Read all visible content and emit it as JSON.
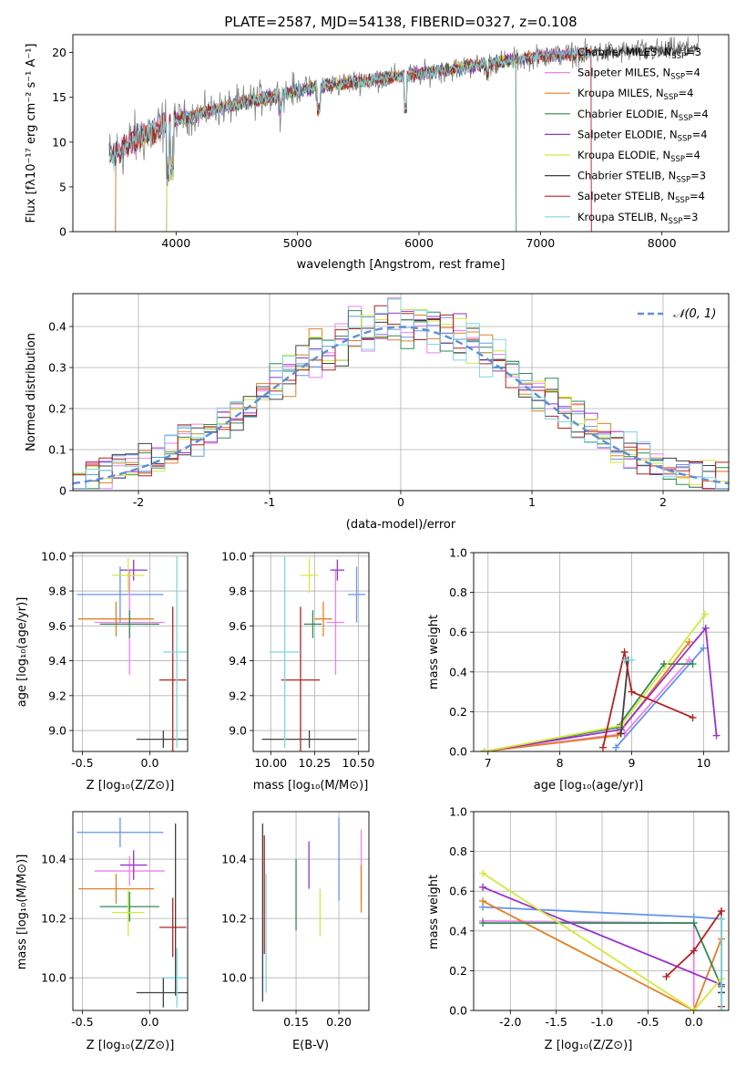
{
  "chart_data": [
    {
      "id": "spectrum",
      "type": "line",
      "title": "PLATE=2587, MJD=54138, FIBERID=0327, z=0.108",
      "xlabel": "wavelength [Angstrom, rest frame]",
      "ylabel": "Flux [fλ10⁻¹⁷ erg cm⁻² s⁻¹ A⁻¹]",
      "xlim": [
        3150,
        8550
      ],
      "ylim": [
        0,
        22
      ],
      "xticks": [
        4000,
        5000,
        6000,
        7000,
        8000
      ],
      "yticks": [
        0,
        5,
        10,
        15,
        20
      ],
      "legend_position": "right",
      "data_range": [
        3450,
        8300
      ],
      "series": [
        {
          "name": "Chabrier MILES, N",
          "sub": "SSP",
          "suffix": "=3",
          "color": "#6495ed",
          "start": 3500,
          "end": 7420,
          "drop_at": 3500
        },
        {
          "name": "Salpeter MILES, N",
          "sub": "SSP",
          "suffix": "=4",
          "color": "#ee82ee",
          "start": 3520,
          "end": 7420,
          "drop_at": 7420
        },
        {
          "name": "Kroupa MILES, N",
          "sub": "SSP",
          "suffix": "=4",
          "color": "#e67e22",
          "start": 3500,
          "end": 7420,
          "drop_at": 3500
        },
        {
          "name": "Chabrier ELODIE, N",
          "sub": "SSP",
          "suffix": "=4",
          "color": "#2e8b57",
          "start": 3920,
          "end": 6800,
          "drop_at": 6800
        },
        {
          "name": "Salpeter ELODIE, N",
          "sub": "SSP",
          "suffix": "=4",
          "color": "#9932cc",
          "start": 3920,
          "end": 6800,
          "drop_at": 3920
        },
        {
          "name": "Kroupa ELODIE, N",
          "sub": "SSP",
          "suffix": "=4",
          "color": "#d4e83a",
          "start": 3920,
          "end": 6800,
          "drop_at": 3920
        },
        {
          "name": "Chabrier STELIB, N",
          "sub": "SSP",
          "suffix": "=3",
          "color": "#404040",
          "start": 3450,
          "end": 8300,
          "drop_at": null
        },
        {
          "name": "Salpeter STELIB, N",
          "sub": "SSP",
          "suffix": "=4",
          "color": "#b22222",
          "start": 3450,
          "end": 7420,
          "drop_at": 7420
        },
        {
          "name": "Kroupa STELIB, N",
          "sub": "SSP",
          "suffix": "=3",
          "color": "#7fd6e0",
          "start": 3450,
          "end": 7420,
          "drop_at": null
        }
      ],
      "data_color": "#808080",
      "continuum": [
        [
          3450,
          8.2
        ],
        [
          3700,
          10.5
        ],
        [
          4000,
          12.5
        ],
        [
          4500,
          14.2
        ],
        [
          5000,
          15.8
        ],
        [
          5500,
          16.8
        ],
        [
          6000,
          17.6
        ],
        [
          6500,
          18.6
        ],
        [
          7000,
          19.6
        ],
        [
          7500,
          20.0
        ],
        [
          8000,
          20.2
        ],
        [
          8300,
          20.5
        ]
      ]
    },
    {
      "id": "residuals",
      "type": "line",
      "title": "",
      "xlabel": "(data-model)/error",
      "ylabel": "Normed distribution",
      "xlim": [
        -2.5,
        2.5
      ],
      "ylim": [
        0,
        0.48
      ],
      "xticks": [
        -2,
        -1,
        0,
        1,
        2
      ],
      "yticks": [
        0,
        0.1,
        0.2,
        0.3,
        0.4
      ],
      "grid": true,
      "legend": "𝒩(0, 1)",
      "legend_position": "top-right",
      "gaussian": {
        "mean": 0,
        "sigma": 1,
        "color": "#5b8fd9"
      }
    },
    {
      "id": "age_vs_z",
      "type": "scatter",
      "xlabel": "Z [log₁₀(Z/Z⊙)]",
      "ylabel": "age  [log₁₀(age/yr)]",
      "xlim": [
        -0.57,
        0.28
      ],
      "ylim": [
        8.88,
        10.02
      ],
      "xticks": [
        -0.5,
        0.0
      ],
      "yticks": [
        9.0,
        9.2,
        9.4,
        9.6,
        9.8,
        10.0
      ],
      "grid": true,
      "points": [
        {
          "x": -0.22,
          "y": 9.78,
          "xerr": 0.32,
          "yerr": 0.16,
          "color": "#6495ed"
        },
        {
          "x": -0.15,
          "y": 9.62,
          "xerr": 0.26,
          "yerr": 0.3,
          "color": "#ee82ee"
        },
        {
          "x": -0.25,
          "y": 9.64,
          "xerr": 0.28,
          "yerr": 0.1,
          "color": "#e67e22"
        },
        {
          "x": -0.15,
          "y": 9.61,
          "xerr": 0.22,
          "yerr": 0.08,
          "color": "#2e8b57"
        },
        {
          "x": -0.12,
          "y": 9.92,
          "xerr": 0.1,
          "yerr": 0.06,
          "color": "#9932cc"
        },
        {
          "x": -0.16,
          "y": 9.89,
          "xerr": 0.12,
          "yerr": 0.1,
          "color": "#d4e83a"
        },
        {
          "x": 0.1,
          "y": 8.95,
          "xerr": 0.2,
          "yerr": 0.05,
          "color": "#404040"
        },
        {
          "x": 0.17,
          "y": 9.29,
          "xerr": 0.1,
          "yerr": 0.42,
          "color": "#b22222"
        },
        {
          "x": 0.2,
          "y": 9.45,
          "xerr": 0.1,
          "yerr": 0.55,
          "color": "#7fd6e0"
        }
      ]
    },
    {
      "id": "age_vs_mass",
      "type": "scatter",
      "xlabel": "mass [log₁₀(M/M⊙)]",
      "ylabel": "",
      "xlim": [
        9.9,
        10.56
      ],
      "ylim": [
        8.88,
        10.02
      ],
      "xticks": [
        10.0,
        10.25,
        10.5
      ],
      "yticks": [
        9.0,
        9.2,
        9.4,
        9.6,
        9.8,
        10.0
      ],
      "grid": true,
      "points": [
        {
          "x": 10.49,
          "y": 9.78,
          "xerr": 0.05,
          "yerr": 0.16,
          "color": "#6495ed"
        },
        {
          "x": 10.37,
          "y": 9.62,
          "xerr": 0.05,
          "yerr": 0.3,
          "color": "#ee82ee"
        },
        {
          "x": 10.3,
          "y": 9.64,
          "xerr": 0.05,
          "yerr": 0.1,
          "color": "#e67e22"
        },
        {
          "x": 10.24,
          "y": 9.61,
          "xerr": 0.05,
          "yerr": 0.08,
          "color": "#2e8b57"
        },
        {
          "x": 10.38,
          "y": 9.92,
          "xerr": 0.04,
          "yerr": 0.06,
          "color": "#9932cc"
        },
        {
          "x": 10.22,
          "y": 9.89,
          "xerr": 0.05,
          "yerr": 0.1,
          "color": "#d4e83a"
        },
        {
          "x": 10.22,
          "y": 8.95,
          "xerr": 0.27,
          "yerr": 0.05,
          "color": "#404040"
        },
        {
          "x": 10.17,
          "y": 9.29,
          "xerr": 0.11,
          "yerr": 0.42,
          "color": "#b22222"
        },
        {
          "x": 10.08,
          "y": 9.45,
          "xerr": 0.09,
          "yerr": 0.55,
          "color": "#7fd6e0"
        }
      ]
    },
    {
      "id": "massweight_vs_age",
      "type": "line",
      "xlabel": "age  [log₁₀(age/yr)]",
      "ylabel": "mass weight",
      "xlim": [
        6.8,
        10.35
      ],
      "ylim": [
        0,
        1.0
      ],
      "xticks": [
        7,
        8,
        9,
        10
      ],
      "yticks": [
        0.0,
        0.2,
        0.4,
        0.6,
        0.8,
        1.0
      ],
      "grid": true,
      "series": [
        {
          "color": "#6495ed",
          "x": [
            8.78,
            10.0
          ],
          "y": [
            0.02,
            0.52
          ]
        },
        {
          "color": "#ee82ee",
          "x": [
            6.95,
            8.9,
            9.8
          ],
          "y": [
            0.0,
            0.09,
            0.46
          ]
        },
        {
          "color": "#e67e22",
          "x": [
            6.95,
            8.8,
            9.8
          ],
          "y": [
            0.0,
            0.08,
            0.55
          ]
        },
        {
          "color": "#2e8b57",
          "x": [
            6.95,
            8.8,
            9.45,
            9.85
          ],
          "y": [
            0.0,
            0.12,
            0.44,
            0.44
          ]
        },
        {
          "color": "#9932cc",
          "x": [
            6.95,
            8.85,
            10.03,
            10.18
          ],
          "y": [
            0.0,
            0.11,
            0.62,
            0.08
          ]
        },
        {
          "color": "#d4e83a",
          "x": [
            6.95,
            8.85,
            10.02
          ],
          "y": [
            0.0,
            0.13,
            0.69
          ]
        },
        {
          "color": "#404040",
          "x": [
            8.85,
            8.95
          ],
          "y": [
            0.09,
            0.46
          ]
        },
        {
          "color": "#b22222",
          "x": [
            8.6,
            8.9,
            9.0,
            9.85
          ],
          "y": [
            0.02,
            0.5,
            0.3,
            0.17
          ]
        },
        {
          "color": "#7fd6e0",
          "x": [
            8.9,
            9.0
          ],
          "y": [
            0.46,
            0.46
          ]
        }
      ]
    },
    {
      "id": "mass_vs_z",
      "type": "scatter",
      "xlabel": "Z [log₁₀(Z/Z⊙)]",
      "ylabel": "mass [log₁₀(M/M⊙)]",
      "xlim": [
        -0.57,
        0.28
      ],
      "ylim": [
        9.89,
        10.56
      ],
      "xticks": [
        -0.5,
        0.0
      ],
      "yticks": [
        10.0,
        10.2,
        10.4
      ],
      "grid": true,
      "points": [
        {
          "x": -0.22,
          "y": 10.49,
          "xerr": 0.32,
          "yerr": 0.05,
          "color": "#6495ed"
        },
        {
          "x": -0.15,
          "y": 10.36,
          "xerr": 0.26,
          "yerr": 0.05,
          "color": "#ee82ee"
        },
        {
          "x": -0.25,
          "y": 10.3,
          "xerr": 0.28,
          "yerr": 0.05,
          "color": "#e67e22"
        },
        {
          "x": -0.15,
          "y": 10.24,
          "xerr": 0.22,
          "yerr": 0.05,
          "color": "#2e8b57"
        },
        {
          "x": -0.12,
          "y": 10.38,
          "xerr": 0.1,
          "yerr": 0.05,
          "color": "#9932cc"
        },
        {
          "x": -0.16,
          "y": 10.22,
          "xerr": 0.12,
          "yerr": 0.08,
          "color": "#d4e83a"
        },
        {
          "x": 0.1,
          "y": 9.95,
          "xerr": 0.2,
          "yerr": 0.05,
          "color": "#404040"
        },
        {
          "x": 0.17,
          "y": 10.17,
          "xerr": 0.1,
          "yerr": 0.1,
          "color": "#b22222"
        },
        {
          "x": 0.2,
          "y": 10.0,
          "xerr": 0.1,
          "yerr": 0.1,
          "color": "#7fd6e0"
        },
        {
          "x": 0.19,
          "y": 10.23,
          "xerr": 0.0,
          "yerr": 0.29,
          "color": "#404040"
        }
      ]
    },
    {
      "id": "mass_vs_ebv",
      "type": "scatter",
      "xlabel": "E(B-V)",
      "ylabel": "",
      "xlim": [
        0.1,
        0.235
      ],
      "ylim": [
        9.89,
        10.56
      ],
      "xticks": [
        0.15,
        0.2
      ],
      "yticks": [
        10.0,
        10.2,
        10.4
      ],
      "grid": true,
      "points": [
        {
          "x": 0.2,
          "y": 10.4,
          "xerr": 0,
          "yerr": 0.14,
          "color": "#6495ed"
        },
        {
          "x": 0.226,
          "y": 10.38,
          "xerr": 0,
          "yerr": 0.12,
          "color": "#ee82ee"
        },
        {
          "x": 0.226,
          "y": 10.3,
          "xerr": 0,
          "yerr": 0.08,
          "color": "#e67e22"
        },
        {
          "x": 0.15,
          "y": 10.28,
          "xerr": 0,
          "yerr": 0.12,
          "color": "#2e8b57"
        },
        {
          "x": 0.165,
          "y": 10.38,
          "xerr": 0,
          "yerr": 0.08,
          "color": "#9932cc"
        },
        {
          "x": 0.178,
          "y": 10.22,
          "xerr": 0,
          "yerr": 0.08,
          "color": "#d4e83a"
        },
        {
          "x": 0.111,
          "y": 10.22,
          "xerr": 0,
          "yerr": 0.3,
          "color": "#404040"
        },
        {
          "x": 0.113,
          "y": 10.28,
          "xerr": 0,
          "yerr": 0.2,
          "color": "#b22222"
        },
        {
          "x": 0.115,
          "y": 10.15,
          "xerr": 0,
          "yerr": 0.2,
          "color": "#7fd6e0"
        }
      ]
    },
    {
      "id": "massweight_vs_z",
      "type": "line",
      "xlabel": "Z [log₁₀(Z/Z⊙)]",
      "ylabel": "mass weight",
      "xlim": [
        -2.4,
        0.38
      ],
      "ylim": [
        0,
        1.0
      ],
      "xticks": [
        -2.0,
        -1.5,
        -1.0,
        -0.5,
        0.0
      ],
      "yticks": [
        0.0,
        0.2,
        0.4,
        0.6,
        0.8,
        1.0
      ],
      "grid": true,
      "series": [
        {
          "color": "#6495ed",
          "x": [
            -2.3,
            0.0,
            0.3
          ],
          "y": [
            0.52,
            0.47,
            0.46
          ]
        },
        {
          "color": "#ee82ee",
          "x": [
            -2.3,
            -0.0,
            0.0
          ],
          "y": [
            0.45,
            0.44,
            0.0
          ]
        },
        {
          "color": "#e67e22",
          "x": [
            -2.3,
            0.0,
            0.3
          ],
          "y": [
            0.55,
            0.0,
            0.36
          ]
        },
        {
          "color": "#2e8b57",
          "x": [
            -2.3,
            0.0,
            0.3
          ],
          "y": [
            0.44,
            0.44,
            0.12
          ]
        },
        {
          "color": "#9932cc",
          "x": [
            -2.3,
            0.3
          ],
          "y": [
            0.62,
            0.13
          ]
        },
        {
          "color": "#d4e83a",
          "x": [
            -2.3,
            0.0,
            0.3
          ],
          "y": [
            0.69,
            0.0,
            0.16
          ]
        },
        {
          "color": "#404040",
          "x": [
            0.3,
            0.3
          ],
          "y": [
            0.09,
            0.46
          ]
        },
        {
          "color": "#b22222",
          "x": [
            -0.3,
            0.0,
            0.3,
            0.3
          ],
          "y": [
            0.17,
            0.3,
            0.5,
            0.02
          ]
        },
        {
          "color": "#7fd6e0",
          "x": [
            0.3,
            0.3
          ],
          "y": [
            0.46,
            0.0
          ]
        }
      ]
    }
  ]
}
